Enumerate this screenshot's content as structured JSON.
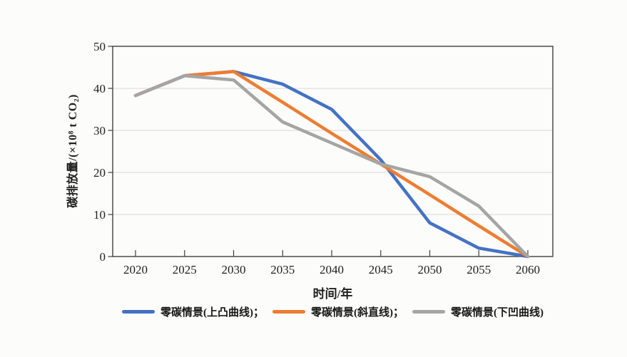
{
  "figure": {
    "background": "#fcfcfa",
    "text_color": "#1f1f1f",
    "axis_color": "#3f3f3f",
    "grid_color": "#d9d9d9"
  },
  "chart_data": {
    "type": "line",
    "title": "",
    "xlabel": "时间/年",
    "ylabel": "碳排放量/(×10⁸ t CO₂)",
    "x": [
      2020,
      2025,
      2030,
      2035,
      2040,
      2045,
      2050,
      2055,
      2060
    ],
    "xtick_labels": [
      "2020",
      "2025",
      "2030",
      "2035",
      "2040",
      "2045",
      "2050",
      "2055",
      "2060"
    ],
    "yticks": [
      0,
      10,
      20,
      30,
      40,
      50
    ],
    "ylim": [
      0,
      50
    ],
    "grid": "horizontal",
    "legend_position": "bottom",
    "line_width": 4.5,
    "series": [
      {
        "name": "零碳情景(上凸曲线)",
        "legend_label": "零碳情景(上凸曲线)；",
        "color": "#4472C4",
        "values": [
          38.3,
          43,
          44,
          41,
          35,
          23,
          8,
          2,
          0
        ]
      },
      {
        "name": "零碳情景(斜直线)",
        "legend_label": "零碳情景(斜直线)；",
        "color": "#ED7D31",
        "values": [
          38.3,
          43,
          44,
          36.7,
          29.3,
          22,
          14.7,
          7.3,
          0
        ]
      },
      {
        "name": "零碳情景(下凹曲线)",
        "legend_label": "零碳情景(下凹曲线)",
        "color": "#A5A5A5",
        "values": [
          38.3,
          43,
          42,
          32,
          27,
          22,
          19,
          12,
          0
        ]
      }
    ]
  }
}
